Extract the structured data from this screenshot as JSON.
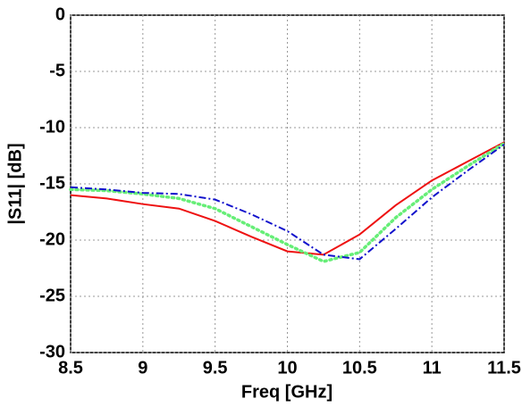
{
  "chart_data": {
    "type": "line",
    "xlabel": "Freq [GHz]",
    "ylabel": "|S11| [dB]",
    "x": [
      8.5,
      8.75,
      9,
      9.25,
      9.5,
      9.75,
      10,
      10.25,
      10.5,
      10.75,
      11,
      11.25,
      11.5
    ],
    "series": [
      {
        "color": "#ee1111",
        "style": "solid",
        "values": [
          -16.0,
          -16.3,
          -16.8,
          -17.2,
          -18.3,
          -19.7,
          -21.0,
          -21.3,
          -19.5,
          -16.9,
          -14.7,
          -13.0,
          -11.3
        ]
      },
      {
        "color": "#66ee77",
        "style": "dotted",
        "values": [
          -15.5,
          -15.6,
          -15.9,
          -16.3,
          -17.2,
          -18.8,
          -20.4,
          -21.9,
          -21.1,
          -18.0,
          -15.5,
          -13.4,
          -11.4
        ]
      },
      {
        "color": "#1111cc",
        "style": "dashdot",
        "values": [
          -15.3,
          -15.5,
          -15.8,
          -15.9,
          -16.4,
          -17.7,
          -19.2,
          -21.3,
          -21.7,
          -19.0,
          -16.2,
          -13.8,
          -11.5
        ]
      }
    ],
    "xlim": [
      8.5,
      11.5
    ],
    "xticks": [
      8.5,
      9,
      9.5,
      10,
      10.5,
      11,
      11.5
    ],
    "ylim": [
      -30,
      0
    ],
    "yticks": [
      -30,
      -25,
      -20,
      -15,
      -10,
      -5,
      0
    ],
    "grid": true
  }
}
